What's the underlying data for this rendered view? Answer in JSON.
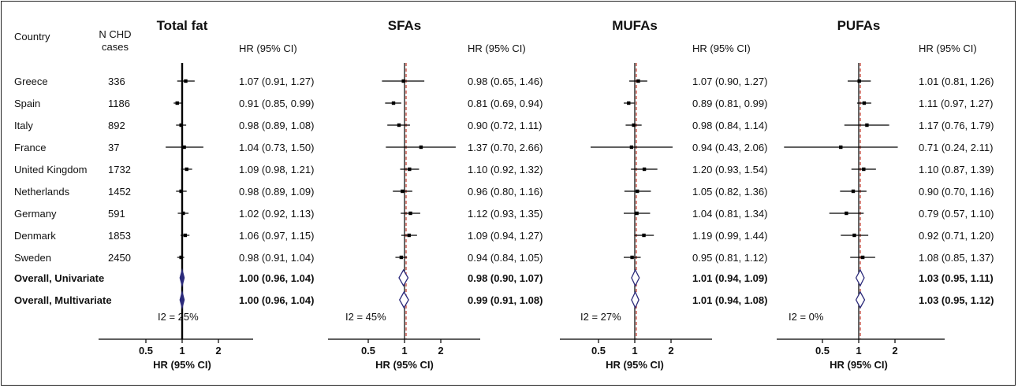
{
  "headers": {
    "country": "Country",
    "n_cases_line1": "N CHD",
    "n_cases_line2": "cases",
    "hr_col": "HR (95% CI)"
  },
  "rows": [
    {
      "country": "Greece",
      "n": "336"
    },
    {
      "country": "Spain",
      "n": "1186"
    },
    {
      "country": "Italy",
      "n": "892"
    },
    {
      "country": "France",
      "n": "37"
    },
    {
      "country": "United Kingdom",
      "n": "1732"
    },
    {
      "country": "Netherlands",
      "n": "1452"
    },
    {
      "country": "Germany",
      "n": "591"
    },
    {
      "country": "Denmark",
      "n": "1853"
    },
    {
      "country": "Sweden",
      "n": "2450"
    },
    {
      "country": "Overall, Univariate",
      "n": "",
      "bold": true
    },
    {
      "country": "Overall, Multivariate",
      "n": "",
      "bold": true
    }
  ],
  "chart_data": [
    {
      "type": "forest",
      "title": "Total fat",
      "xlabel": "HR (95% CI)",
      "x_ticks": [
        "0.5",
        "1",
        "2"
      ],
      "heterogeneity": "I2 = 25%",
      "studies": [
        {
          "country": "Greece",
          "hr": 1.07,
          "lo": 0.91,
          "hi": 1.27,
          "label": "1.07 (0.91, 1.27)"
        },
        {
          "country": "Spain",
          "hr": 0.91,
          "lo": 0.85,
          "hi": 0.99,
          "label": "0.91 (0.85, 0.99)"
        },
        {
          "country": "Italy",
          "hr": 0.98,
          "lo": 0.89,
          "hi": 1.08,
          "label": "0.98 (0.89, 1.08)"
        },
        {
          "country": "France",
          "hr": 1.04,
          "lo": 0.73,
          "hi": 1.5,
          "label": "1.04 (0.73, 1.50)"
        },
        {
          "country": "United Kingdom",
          "hr": 1.09,
          "lo": 0.98,
          "hi": 1.21,
          "label": "1.09 (0.98, 1.21)"
        },
        {
          "country": "Netherlands",
          "hr": 0.98,
          "lo": 0.89,
          "hi": 1.09,
          "label": "0.98 (0.89, 1.09)"
        },
        {
          "country": "Germany",
          "hr": 1.02,
          "lo": 0.92,
          "hi": 1.13,
          "label": "1.02 (0.92, 1.13)"
        },
        {
          "country": "Denmark",
          "hr": 1.06,
          "lo": 0.97,
          "hi": 1.15,
          "label": "1.06 (0.97, 1.15)"
        },
        {
          "country": "Sweden",
          "hr": 0.98,
          "lo": 0.91,
          "hi": 1.04,
          "label": "0.98 (0.91, 1.04)"
        }
      ],
      "overall": [
        {
          "name": "Overall, Univariate",
          "hr": 1.0,
          "lo": 0.96,
          "hi": 1.04,
          "label": "1.00 (0.96, 1.04)"
        },
        {
          "name": "Overall, Multivariate",
          "hr": 1.0,
          "lo": 0.96,
          "hi": 1.04,
          "label": "1.00 (0.96, 1.04)"
        }
      ]
    },
    {
      "type": "forest",
      "title": "SFAs",
      "xlabel": "HR (95% CI)",
      "x_ticks": [
        "0.5",
        "1",
        "2"
      ],
      "heterogeneity": "I2 = 45%",
      "studies": [
        {
          "country": "Greece",
          "hr": 0.98,
          "lo": 0.65,
          "hi": 1.46,
          "label": "0.98 (0.65, 1.46)"
        },
        {
          "country": "Spain",
          "hr": 0.81,
          "lo": 0.69,
          "hi": 0.94,
          "label": "0.81 (0.69, 0.94)"
        },
        {
          "country": "Italy",
          "hr": 0.9,
          "lo": 0.72,
          "hi": 1.11,
          "label": "0.90 (0.72, 1.11)"
        },
        {
          "country": "France",
          "hr": 1.37,
          "lo": 0.7,
          "hi": 2.66,
          "label": "1.37 (0.70, 2.66)"
        },
        {
          "country": "United Kingdom",
          "hr": 1.1,
          "lo": 0.92,
          "hi": 1.32,
          "label": "1.10 (0.92, 1.32)"
        },
        {
          "country": "Netherlands",
          "hr": 0.96,
          "lo": 0.8,
          "hi": 1.16,
          "label": "0.96 (0.80, 1.16)"
        },
        {
          "country": "Germany",
          "hr": 1.12,
          "lo": 0.93,
          "hi": 1.35,
          "label": "1.12 (0.93, 1.35)"
        },
        {
          "country": "Denmark",
          "hr": 1.09,
          "lo": 0.94,
          "hi": 1.27,
          "label": "1.09 (0.94, 1.27)"
        },
        {
          "country": "Sweden",
          "hr": 0.94,
          "lo": 0.84,
          "hi": 1.05,
          "label": "0.94 (0.84, 1.05)"
        }
      ],
      "overall": [
        {
          "name": "Overall, Univariate",
          "hr": 0.98,
          "lo": 0.9,
          "hi": 1.07,
          "label": "0.98 (0.90, 1.07)"
        },
        {
          "name": "Overall, Multivariate",
          "hr": 0.99,
          "lo": 0.91,
          "hi": 1.08,
          "label": "0.99 (0.91, 1.08)"
        }
      ]
    },
    {
      "type": "forest",
      "title": "MUFAs",
      "xlabel": "HR (95% CI)",
      "x_ticks": [
        "0.5",
        "1",
        "2"
      ],
      "heterogeneity": "I2 = 27%",
      "studies": [
        {
          "country": "Greece",
          "hr": 1.07,
          "lo": 0.9,
          "hi": 1.27,
          "label": "1.07 (0.90, 1.27)"
        },
        {
          "country": "Spain",
          "hr": 0.89,
          "lo": 0.81,
          "hi": 0.99,
          "label": "0.89 (0.81, 0.99)"
        },
        {
          "country": "Italy",
          "hr": 0.98,
          "lo": 0.84,
          "hi": 1.14,
          "label": "0.98 (0.84, 1.14)"
        },
        {
          "country": "France",
          "hr": 0.94,
          "lo": 0.43,
          "hi": 2.06,
          "label": "0.94 (0.43, 2.06)"
        },
        {
          "country": "United Kingdom",
          "hr": 1.2,
          "lo": 0.93,
          "hi": 1.54,
          "label": "1.20 (0.93, 1.54)"
        },
        {
          "country": "Netherlands",
          "hr": 1.05,
          "lo": 0.82,
          "hi": 1.36,
          "label": "1.05 (0.82, 1.36)"
        },
        {
          "country": "Germany",
          "hr": 1.04,
          "lo": 0.81,
          "hi": 1.34,
          "label": "1.04 (0.81, 1.34)"
        },
        {
          "country": "Denmark",
          "hr": 1.19,
          "lo": 0.99,
          "hi": 1.44,
          "label": "1.19 (0.99, 1.44)"
        },
        {
          "country": "Sweden",
          "hr": 0.95,
          "lo": 0.81,
          "hi": 1.12,
          "label": "0.95 (0.81, 1.12)"
        }
      ],
      "overall": [
        {
          "name": "Overall, Univariate",
          "hr": 1.01,
          "lo": 0.94,
          "hi": 1.09,
          "label": "1.01 (0.94, 1.09)"
        },
        {
          "name": "Overall, Multivariate",
          "hr": 1.01,
          "lo": 0.94,
          "hi": 1.08,
          "label": "1.01 (0.94, 1.08)"
        }
      ]
    },
    {
      "type": "forest",
      "title": "PUFAs",
      "xlabel": "HR (95% CI)",
      "x_ticks": [
        "0.5",
        "1",
        "2"
      ],
      "heterogeneity": "I2 = 0%",
      "studies": [
        {
          "country": "Greece",
          "hr": 1.01,
          "lo": 0.81,
          "hi": 1.26,
          "label": "1.01 (0.81, 1.26)"
        },
        {
          "country": "Spain",
          "hr": 1.11,
          "lo": 0.97,
          "hi": 1.27,
          "label": "1.11 (0.97, 1.27)"
        },
        {
          "country": "Italy",
          "hr": 1.17,
          "lo": 0.76,
          "hi": 1.79,
          "label": "1.17 (0.76, 1.79)"
        },
        {
          "country": "France",
          "hr": 0.71,
          "lo": 0.24,
          "hi": 2.11,
          "label": "0.71 (0.24, 2.11)"
        },
        {
          "country": "United Kingdom",
          "hr": 1.1,
          "lo": 0.87,
          "hi": 1.39,
          "label": "1.10 (0.87, 1.39)"
        },
        {
          "country": "Netherlands",
          "hr": 0.9,
          "lo": 0.7,
          "hi": 1.16,
          "label": "0.90 (0.70, 1.16)"
        },
        {
          "country": "Germany",
          "hr": 0.79,
          "lo": 0.57,
          "hi": 1.1,
          "label": "0.79 (0.57, 1.10)"
        },
        {
          "country": "Denmark",
          "hr": 0.92,
          "lo": 0.71,
          "hi": 1.2,
          "label": "0.92 (0.71, 1.20)"
        },
        {
          "country": "Sweden",
          "hr": 1.08,
          "lo": 0.85,
          "hi": 1.37,
          "label": "1.08 (0.85, 1.37)"
        }
      ],
      "overall": [
        {
          "name": "Overall, Univariate",
          "hr": 1.03,
          "lo": 0.95,
          "hi": 1.11,
          "label": "1.03 (0.95, 1.11)"
        },
        {
          "name": "Overall, Multivariate",
          "hr": 1.03,
          "lo": 0.95,
          "hi": 1.12,
          "label": "1.03 (0.95, 1.12)"
        }
      ]
    }
  ],
  "colors": {
    "text": "#111111",
    "line": "#000000",
    "diamond": "#2b2a7a",
    "reference_line": "#c0392b"
  }
}
